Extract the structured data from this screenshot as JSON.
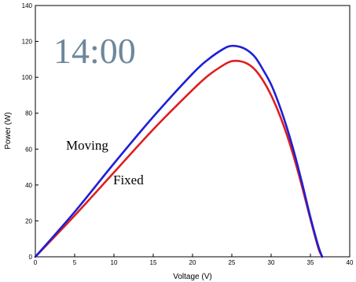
{
  "chart_data": {
    "type": "line",
    "xlabel": "Voltage (V)",
    "ylabel": "Power (W)",
    "xlim": [
      0,
      40
    ],
    "ylim": [
      0,
      140
    ],
    "xticks": [
      "0",
      "5",
      "10",
      "15",
      "20",
      "25",
      "30",
      "35",
      "40"
    ],
    "yticks": [
      "0",
      "20",
      "40",
      "60",
      "80",
      "100",
      "120",
      "140"
    ],
    "grid": false,
    "annotations": {
      "time": "14:00",
      "moving": "Moving",
      "fixed": "Fixed"
    },
    "series": [
      {
        "name": "Moving",
        "color": "#1f1fd6",
        "x": [
          0,
          5,
          10,
          15,
          20,
          22,
          24,
          25,
          26,
          27,
          28,
          29,
          30,
          31,
          32,
          33,
          34,
          35,
          36,
          36.5
        ],
        "y": [
          0,
          25,
          52,
          78,
          102,
          110,
          116,
          117.5,
          117,
          115,
          111,
          104,
          96,
          85,
          72,
          57,
          40,
          22,
          6,
          0
        ]
      },
      {
        "name": "Fixed",
        "color": "#dd1f1f",
        "x": [
          0,
          5,
          10,
          15,
          20,
          22,
          24,
          25,
          26,
          27,
          28,
          29,
          30,
          31,
          32,
          33,
          34,
          35,
          36,
          36.5
        ],
        "y": [
          0,
          23,
          47,
          71,
          93,
          101,
          107,
          109,
          109,
          107.5,
          104,
          98,
          90,
          80,
          68,
          54,
          38,
          21,
          5,
          0
        ]
      }
    ]
  }
}
